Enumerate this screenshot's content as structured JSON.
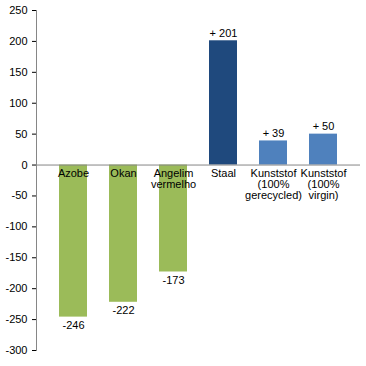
{
  "chart_data": {
    "type": "bar",
    "categories": [
      "Azobe",
      "Okan",
      "Angelim vermelho",
      "Staal",
      "Kunststof (100% gerecycled)",
      "Kunststof (100% virgin)"
    ],
    "values": [
      -246,
      -222,
      -173,
      201,
      39,
      50
    ],
    "value_labels": [
      "-246",
      "-222",
      "-173",
      "+ 201",
      "+ 39",
      "+ 50"
    ],
    "colors": [
      "#9bbb59",
      "#9bbb59",
      "#9bbb59",
      "#1f497d",
      "#4f81bd",
      "#4f81bd"
    ],
    "ylim": [
      -300,
      250
    ],
    "yticks": [
      -300,
      -250,
      -200,
      -150,
      -100,
      -50,
      0,
      50,
      100,
      150,
      200,
      250
    ],
    "grid": false,
    "data_labels": true
  }
}
